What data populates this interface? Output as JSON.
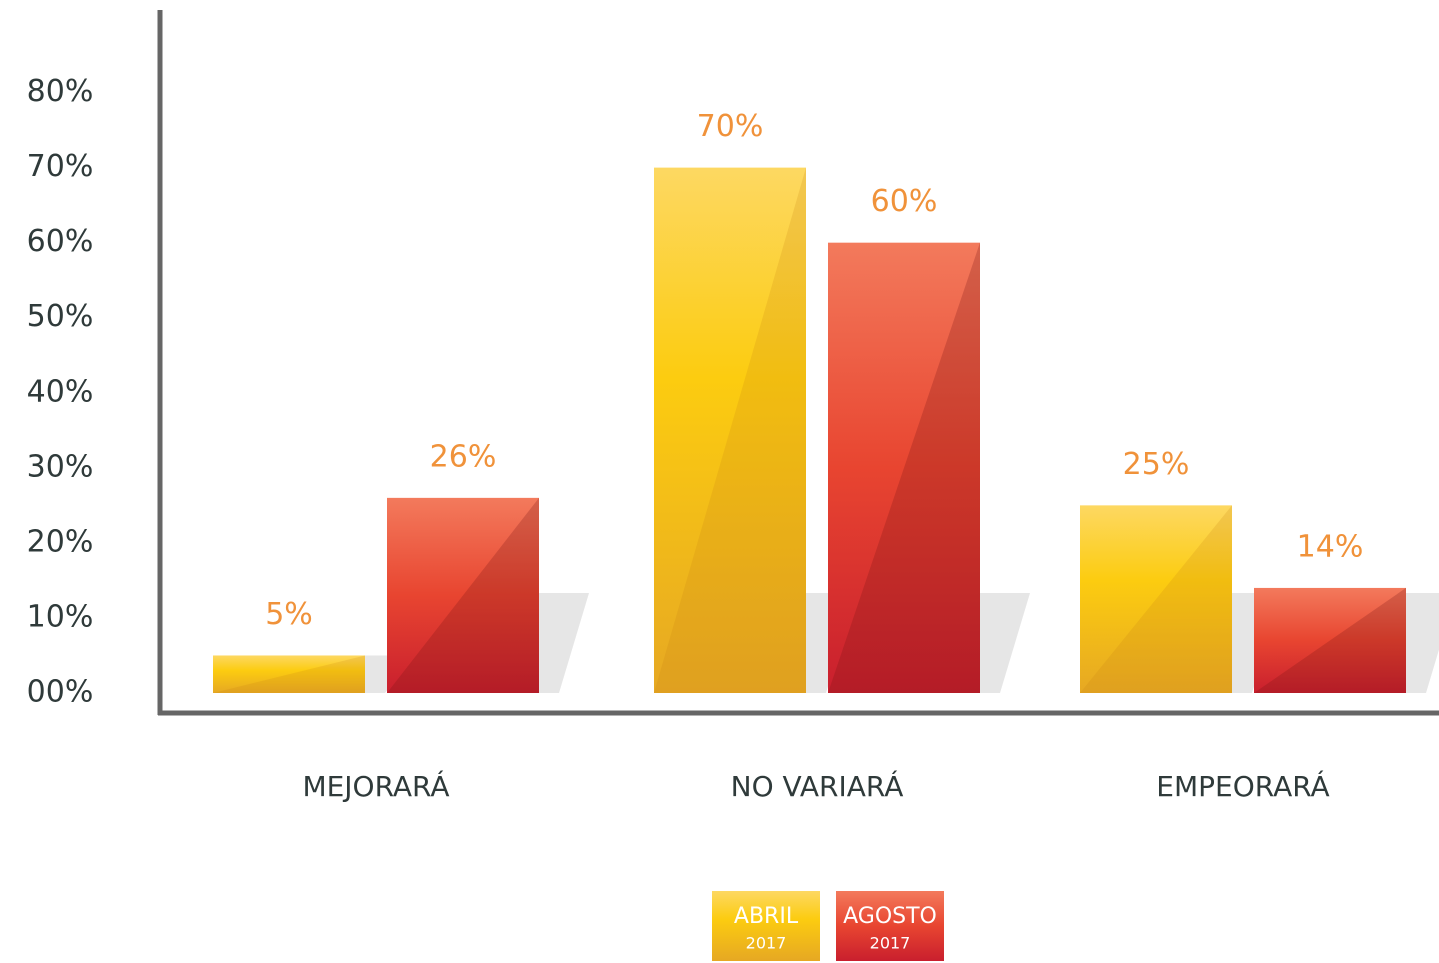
{
  "chart_data": {
    "type": "bar",
    "categories": [
      "MEJORARÁ",
      "NO VARIARÁ",
      "EMPEORARÁ"
    ],
    "series": [
      {
        "name": "ABRIL",
        "name_line2": "2017",
        "color": "#f5be1c",
        "values": [
          5,
          70,
          25
        ],
        "value_labels": [
          "5%",
          "70%",
          "25%"
        ]
      },
      {
        "name": "AGOSTO",
        "name_line2": "2017",
        "color": "#e8452e",
        "values": [
          26,
          60,
          14
        ],
        "value_labels": [
          "26%",
          "60%",
          "14%"
        ]
      }
    ],
    "ylim": [
      0,
      91
    ],
    "yticks": [
      {
        "value": 0,
        "label": "00%"
      },
      {
        "value": 10,
        "label": "10%"
      },
      {
        "value": 20,
        "label": "20%"
      },
      {
        "value": 30,
        "label": "30%"
      },
      {
        "value": 40,
        "label": "40%"
      },
      {
        "value": 50,
        "label": "50%"
      },
      {
        "value": 60,
        "label": "60%"
      },
      {
        "value": 70,
        "label": "70%"
      },
      {
        "value": 80,
        "label": "80%"
      }
    ],
    "grid": false
  }
}
